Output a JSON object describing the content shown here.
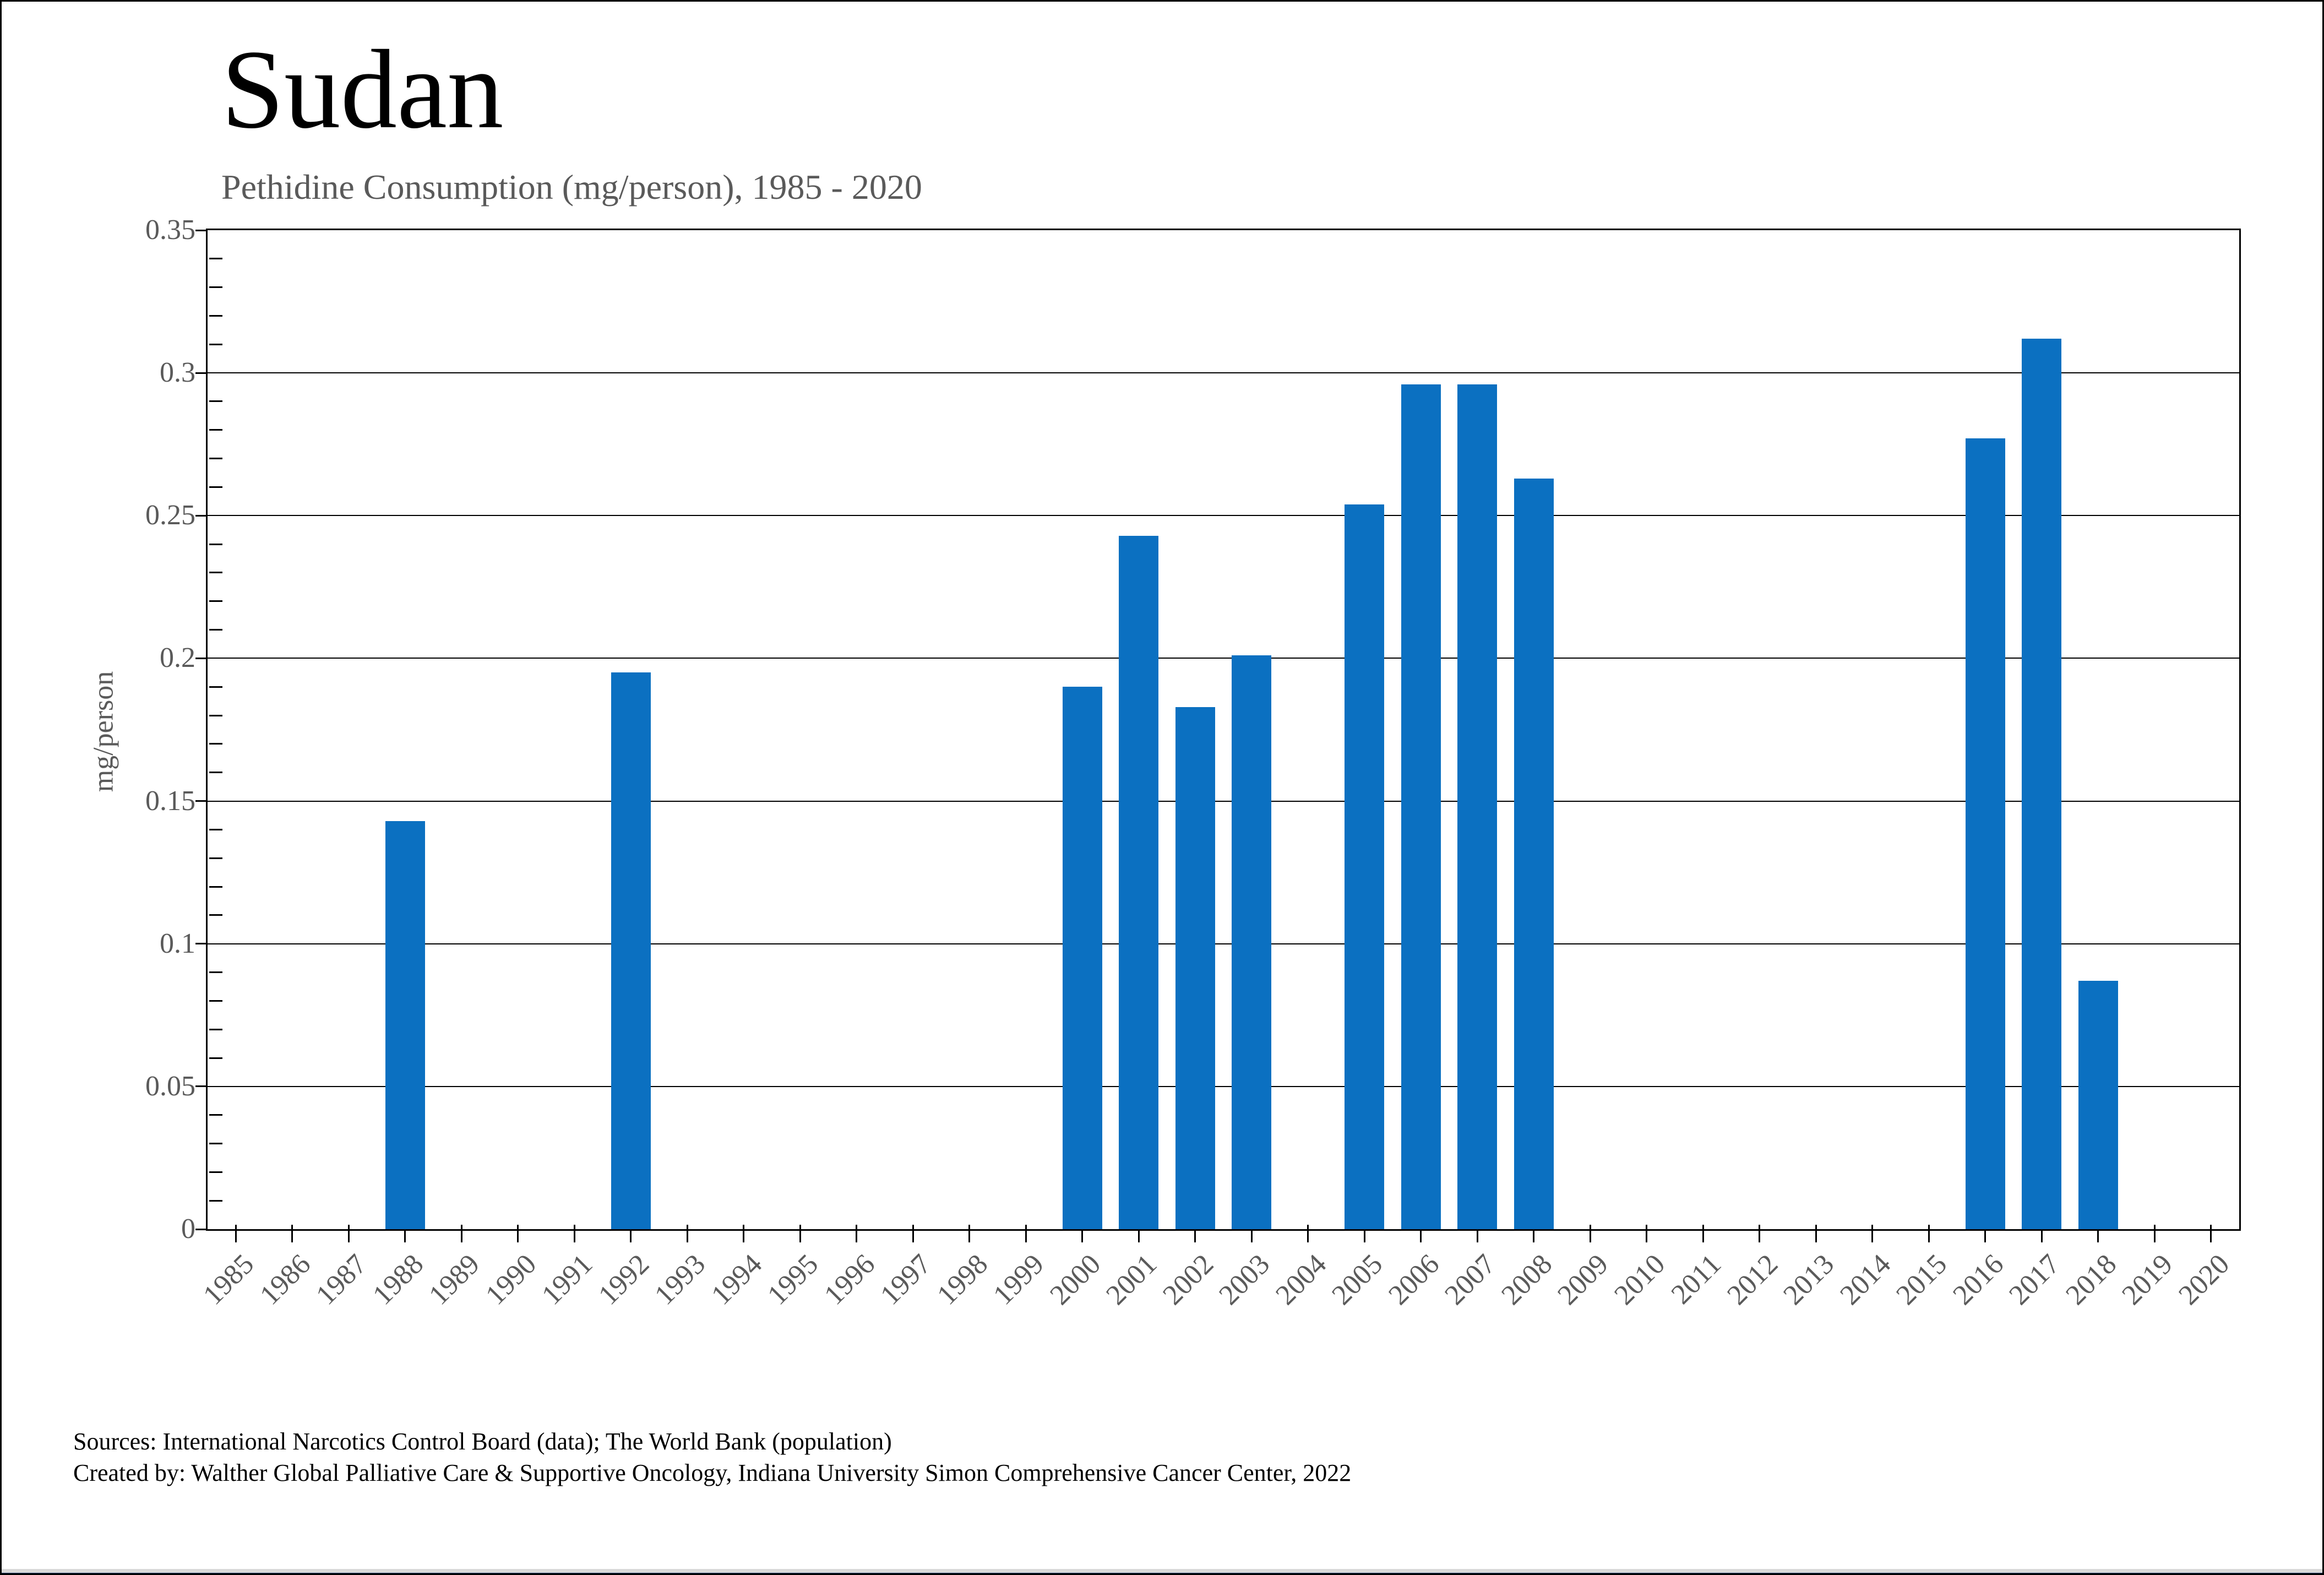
{
  "page": {
    "title": "Sudan",
    "subtitle": "Pethidine Consumption (mg/person), 1985 - 2020",
    "source_line1": "Sources: International Narcotics Control Board (data); The World Bank (population)",
    "source_line2": "Created by: Walther Global Palliative Care & Supportive Oncology, Indiana University Simon Comprehensive Cancer Center, 2022"
  },
  "colors": {
    "bar": "#0b70c1",
    "axis": "#000000",
    "gridline": "#000000",
    "tick_label": "#5a5a5a",
    "subtitle": "#5a5a5a",
    "footer_gray_strip": "#d9d9d9",
    "footer_blue_strip": "#1f3864"
  },
  "chart_data": {
    "type": "bar",
    "title": "Sudan",
    "subtitle": "Pethidine Consumption (mg/person), 1985 - 2020",
    "xlabel": "",
    "ylabel": "mg/person",
    "ylim": [
      0,
      0.35
    ],
    "ytick_step": 0.05,
    "ytick_minor_step": 0.01,
    "yticks": [
      0,
      0.05,
      0.1,
      0.15,
      0.2,
      0.25,
      0.3,
      0.35
    ],
    "ytick_labels": [
      "0",
      "0.05",
      "0.1",
      "0.15",
      "0.2",
      "0.25",
      "0.3",
      "0.35"
    ],
    "grid": "horizontal-major",
    "legend": "none",
    "bar_color": "#0b70c1",
    "categories": [
      "1985",
      "1986",
      "1987",
      "1988",
      "1989",
      "1990",
      "1991",
      "1992",
      "1993",
      "1994",
      "1995",
      "1996",
      "1997",
      "1998",
      "1999",
      "2000",
      "2001",
      "2002",
      "2003",
      "2004",
      "2005",
      "2006",
      "2007",
      "2008",
      "2009",
      "2010",
      "2011",
      "2012",
      "2013",
      "2014",
      "2015",
      "2016",
      "2017",
      "2018",
      "2019",
      "2020"
    ],
    "values": [
      null,
      null,
      null,
      0.143,
      null,
      null,
      null,
      0.195,
      null,
      null,
      null,
      null,
      null,
      null,
      null,
      0.19,
      0.243,
      0.183,
      0.201,
      null,
      0.254,
      0.296,
      0.296,
      0.263,
      null,
      null,
      null,
      null,
      null,
      null,
      null,
      0.277,
      0.312,
      0.087,
      null,
      null
    ]
  }
}
